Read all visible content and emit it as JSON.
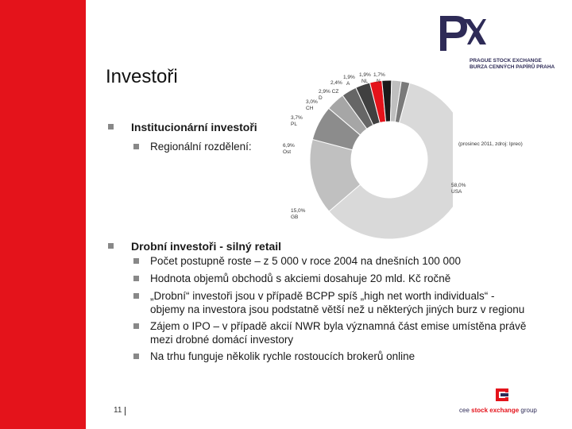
{
  "slide": {
    "title": "Investoři",
    "page_number": "11"
  },
  "logo": {
    "line1": "PRAGUE STOCK EXCHANGE",
    "line2": "BURZA CENNÝCH PAPÍRŮ PRAHA"
  },
  "bullets": {
    "institutional": {
      "label": "Institucionární investoři",
      "sub": "Regionální rozdělení:"
    },
    "retail": {
      "label": "Drobní investoři - silný retail",
      "items": [
        {
          "lines": [
            "Počet postupně roste – z 5 000 v roce 2004 na dnešních 100 000"
          ]
        },
        {
          "lines": [
            "Hodnota objemů obchodů s akciemi dosahuje 20 mld. Kč ročně"
          ]
        },
        {
          "lines": [
            "„Drobní“ investoři jsou v případě BCPP spíš „high net worth individuals“ -",
            "objemy na investora jsou podstatně větší než u některých jiných burz v regionu"
          ]
        },
        {
          "lines": [
            "Zájem o IPO – v případě akcií NWR byla významná část emise umístěna právě",
            "mezi drobné domácí investory"
          ]
        },
        {
          "lines": [
            "Na trhu funguje několik rychle rostoucích brokerů online"
          ]
        }
      ]
    }
  },
  "chart_data": {
    "type": "pie",
    "source_note": "(prosinec 2011, zdroj: Ipreo)",
    "slices": [
      {
        "label": "USA",
        "value": 58.0,
        "display": "58,0%",
        "color": "#d9d9d9"
      },
      {
        "label": "GB",
        "value": 15.0,
        "display": "15,0%",
        "color": "#c0c0c0"
      },
      {
        "label": "Ost",
        "value": 6.9,
        "display": "6,9%",
        "color": "#8c8c8c"
      },
      {
        "label": "PL",
        "value": 3.7,
        "display": "3,7%",
        "color": "#a6a6a6"
      },
      {
        "label": "CH",
        "value": 3.0,
        "display": "3,0%",
        "color": "#666666"
      },
      {
        "label": "D",
        "value": 2.9,
        "display": "2,9%",
        "color": "#404040"
      },
      {
        "label": "CZ",
        "value": 2.4,
        "display": "2,4%",
        "color": "#e4131b"
      },
      {
        "label": "A",
        "value": 1.9,
        "display": "1,9%",
        "color": "#1a1a1a"
      },
      {
        "label": "NL",
        "value": 1.9,
        "display": "1,9%",
        "color": "#bfbfbf"
      },
      {
        "label": "N",
        "value": 1.7,
        "display": "1,7%",
        "color": "#7a7a7a"
      }
    ]
  },
  "footer": {
    "brand_prefix": "cee ",
    "brand_highlight": "stock exchange",
    "brand_suffix": " group"
  }
}
